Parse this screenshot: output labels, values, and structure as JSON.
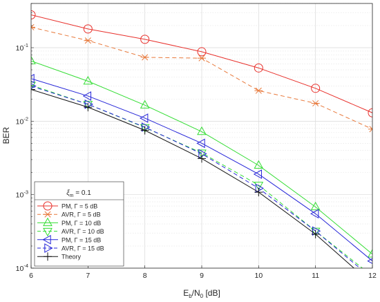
{
  "chart_data": {
    "type": "line",
    "xlabel_main": "E",
    "xlabel_sub": "b",
    "xlabel_mid": "/N",
    "xlabel_sub2": "0",
    "xlabel_tail": " [dB]",
    "ylabel": "BER",
    "x": [
      6,
      7,
      8,
      9,
      10,
      11,
      12
    ],
    "xlim": [
      6,
      12
    ],
    "ylim": [
      0.0001,
      0.4
    ],
    "yscale": "log",
    "x_ticks": [
      "6",
      "7",
      "8",
      "9",
      "10",
      "11",
      "12"
    ],
    "y_tick_base": "10",
    "y_tick_exps": [
      "-4",
      "-3",
      "-2",
      "-1"
    ],
    "grid": true,
    "legend_placement": "lower-left",
    "legend_title_sym": "ξ",
    "legend_title_sub": "m",
    "legend_title_rest": " = 0.1",
    "series": [
      {
        "name": "PM, Γ = 5 dB",
        "color": "#e8302b",
        "dash": "solid",
        "marker": "circle",
        "values": [
          0.28,
          0.18,
          0.13,
          0.088,
          0.053,
          0.028,
          0.013
        ]
      },
      {
        "name": "AVR, Γ = 5 dB",
        "color": "#e8783a",
        "dash": "dashed",
        "marker": "asterisk",
        "values": [
          0.19,
          0.125,
          0.074,
          0.072,
          0.026,
          0.0175,
          0.0078
        ]
      },
      {
        "name": "PM, Γ = 10 dB",
        "color": "#33dd33",
        "dash": "solid",
        "marker": "triangle-up",
        "values": [
          0.066,
          0.035,
          0.0165,
          0.0072,
          0.0025,
          0.00068,
          0.000155
        ]
      },
      {
        "name": "AVR, Γ = 10 dB",
        "color": "#33dd33",
        "dash": "dashed",
        "marker": "triangle-down",
        "values": [
          0.031,
          0.017,
          0.0082,
          0.0037,
          0.00135,
          0.00032,
          7.8e-05
        ]
      },
      {
        "name": "PM, Γ = 15 dB",
        "color": "#2424d8",
        "dash": "solid",
        "marker": "triangle-left",
        "values": [
          0.038,
          0.022,
          0.011,
          0.005,
          0.0019,
          0.00055,
          0.000125
        ]
      },
      {
        "name": "AVR, Γ = 15 dB",
        "color": "#2424d8",
        "dash": "dashed",
        "marker": "triangle-right",
        "values": [
          0.03,
          0.017,
          0.0083,
          0.0036,
          0.00122,
          0.00032,
          7.2e-05
        ]
      },
      {
        "name": "Theory",
        "color": "#111111",
        "dash": "solid",
        "marker": "plus",
        "values": [
          0.027,
          0.0155,
          0.0075,
          0.0031,
          0.00108,
          0.00029,
          6e-05
        ]
      }
    ]
  }
}
